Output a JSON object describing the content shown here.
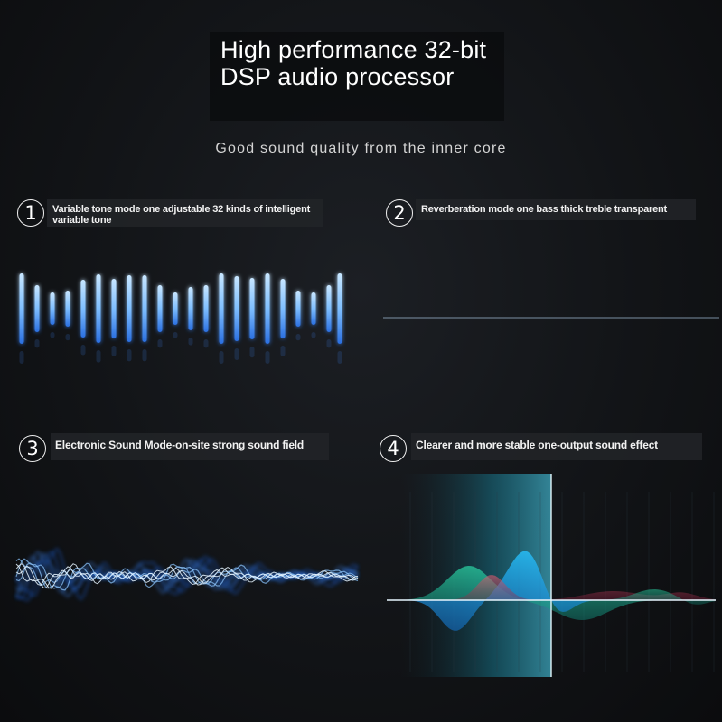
{
  "header": {
    "title_line1": "High performance 32-bit",
    "title_line2": "DSP audio processor",
    "subtitle": "Good sound quality from the inner core"
  },
  "features": [
    {
      "number": "1",
      "text": "Variable tone mode one adjustable 32 kinds of intelligent variable tone"
    },
    {
      "number": "2",
      "text": "Reverberation mode one bass thick treble transparent"
    },
    {
      "number": "3",
      "text": "Electronic Sound Mode-on-site strong sound field"
    },
    {
      "number": "4",
      "text": "Clearer and more stable one-output sound effect"
    }
  ],
  "colors": {
    "accent_blue": "#3a8cff",
    "bar_glow": "#9fd0ff",
    "teal": "#22c7b0",
    "cyan": "#1ec8ff",
    "red": "#e05a6a"
  }
}
